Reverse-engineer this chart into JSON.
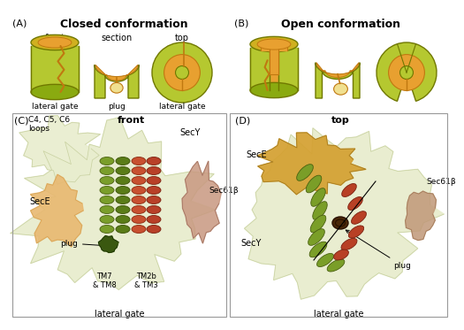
{
  "bg_color": "#ffffff",
  "panel_A_title": "Closed conformation",
  "panel_B_title": "Open conformation",
  "label_A": "(A)",
  "label_B": "(B)",
  "label_C": "(C)",
  "label_D": "(D)",
  "front_label": "front",
  "section_label": "section",
  "top_label": "top",
  "lateral_gate_label": "lateral gate",
  "plug_label": "plug",
  "lateral_gate_label2": "lateral gate",
  "top_label2": "top",
  "lateral_gate_label3": "lateral gate",
  "lateral_gate_label4": "lateral gate",
  "c_green_body": "#b5c830",
  "c_green_dark": "#8aaa10",
  "c_green_outline": "#707800",
  "c_orange": "#e8a030",
  "c_orange_dark": "#c07810",
  "c_plug_light": "#f0e090",
  "c_rim": "#d0b020",
  "SecY_label": "SecY",
  "SecE_label": "SecE",
  "Sec61b_label": "Sec61β",
  "plug_label_C": "plug",
  "TM78_label": "TM7\n& TM8",
  "TM23_label": "TM2b\n& TM3",
  "C4C5C6_label": "C4, C5, C6\nloops",
  "front_bold": "front",
  "SecY_label_D": "SecY",
  "SecE_label_D": "SecE",
  "Sec61b_label_D": "Sec61β",
  "plug_label_D": "plug",
  "top_bold": "top"
}
